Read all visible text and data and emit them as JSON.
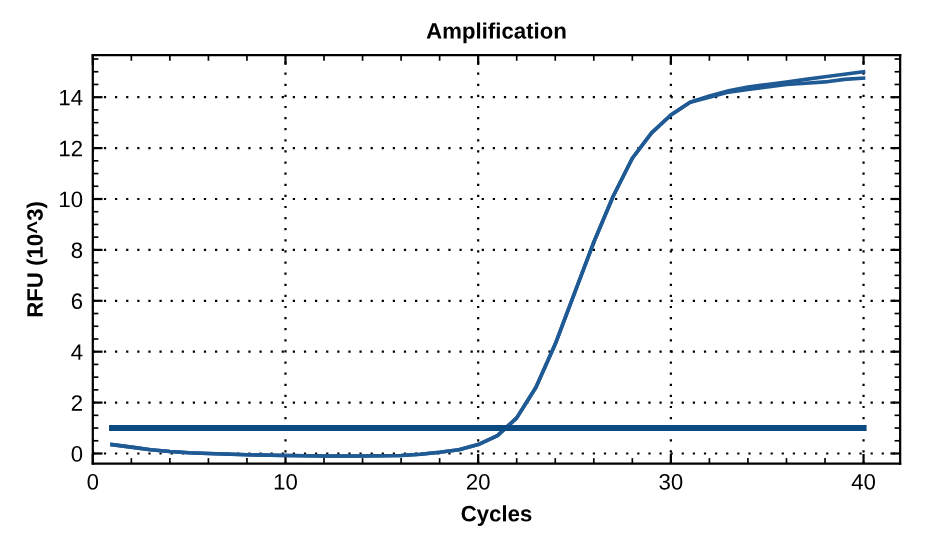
{
  "chart_data": {
    "type": "line",
    "title": "Amplification",
    "xlabel": "Cycles",
    "ylabel": "RFU (10^3)",
    "xlim": [
      0,
      41.9
    ],
    "ylim": [
      -0.4,
      15.65
    ],
    "xticks": [
      0,
      10,
      20,
      30,
      40
    ],
    "yticks": [
      0,
      2,
      4,
      6,
      8,
      10,
      12,
      14
    ],
    "grid": true,
    "marker": "none",
    "line_style": "solid",
    "series": [
      {
        "color": "#1f5a94",
        "x": [
          1,
          2,
          3,
          4,
          5,
          6,
          8,
          10,
          12,
          14,
          16,
          17,
          18,
          19,
          20,
          21,
          22,
          23,
          24,
          25,
          26,
          27,
          28,
          29,
          30,
          31,
          32,
          33,
          34,
          35,
          36,
          37,
          38,
          39,
          40
        ],
        "values": [
          0.35,
          0.25,
          0.15,
          0.08,
          0.03,
          0.0,
          -0.05,
          -0.08,
          -0.1,
          -0.1,
          -0.08,
          -0.03,
          0.05,
          0.15,
          0.35,
          0.7,
          1.4,
          2.6,
          4.3,
          6.3,
          8.3,
          10.1,
          11.6,
          12.6,
          13.3,
          13.8,
          14.05,
          14.25,
          14.4,
          14.5,
          14.6,
          14.7,
          14.8,
          14.9,
          15.0
        ]
      },
      {
        "color": "#1f5a94",
        "x": [
          1,
          2,
          3,
          4,
          5,
          6,
          8,
          10,
          12,
          14,
          16,
          17,
          18,
          19,
          20,
          21,
          22,
          23,
          24,
          25,
          26,
          27,
          28,
          29,
          30,
          31,
          32,
          33,
          34,
          35,
          36,
          37,
          38,
          39,
          40
        ],
        "values": [
          0.35,
          0.25,
          0.15,
          0.08,
          0.03,
          0.0,
          -0.05,
          -0.08,
          -0.1,
          -0.1,
          -0.08,
          -0.03,
          0.05,
          0.15,
          0.35,
          0.7,
          1.4,
          2.6,
          4.3,
          6.3,
          8.3,
          10.1,
          11.6,
          12.6,
          13.3,
          13.8,
          14.0,
          14.2,
          14.3,
          14.4,
          14.5,
          14.55,
          14.6,
          14.7,
          14.75
        ]
      },
      {
        "color": "#0b4a80",
        "x": [
          1,
          40
        ],
        "values": [
          1.0,
          1.0
        ]
      }
    ]
  }
}
